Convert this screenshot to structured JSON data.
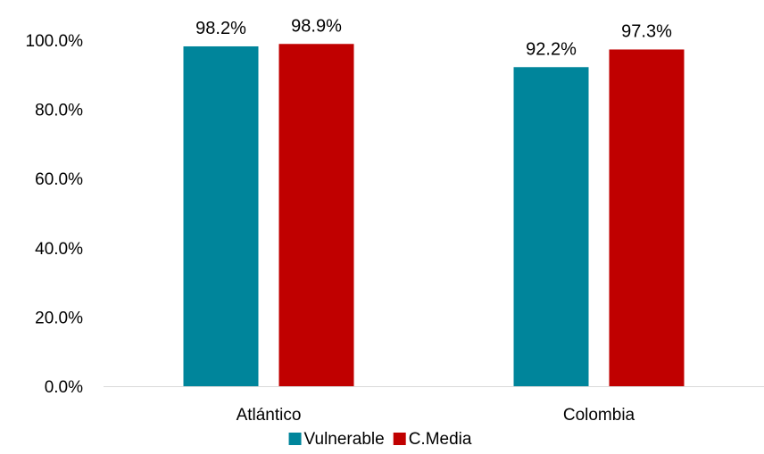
{
  "chart_data": {
    "type": "bar",
    "categories": [
      "Atlántico",
      "Colombia"
    ],
    "series": [
      {
        "name": "Vulnerable",
        "values": [
          98.2,
          92.2
        ],
        "labels": [
          "98.2%",
          "92.2%"
        ],
        "color": "#00859b"
      },
      {
        "name": "C.Media",
        "values": [
          98.9,
          97.3
        ],
        "labels": [
          "98.9%",
          "97.3%"
        ],
        "color": "#c00000"
      }
    ],
    "ylim": [
      0,
      100
    ],
    "yticks": [
      0,
      20,
      40,
      60,
      80,
      100
    ],
    "ytick_labels": [
      "0.0%",
      "20.0%",
      "40.0%",
      "60.0%",
      "80.0%",
      "100.0%"
    ],
    "grid": false,
    "legend_position": "bottom"
  }
}
